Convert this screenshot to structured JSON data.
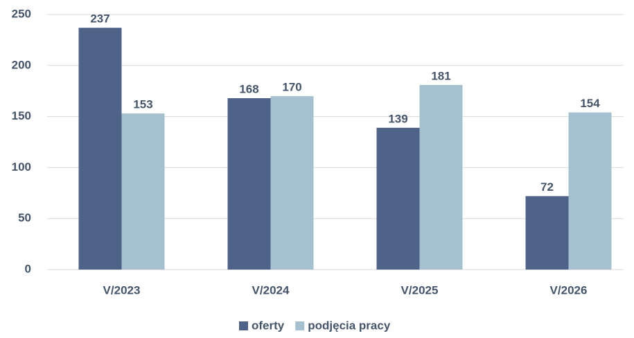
{
  "chart_data": {
    "type": "bar",
    "categories": [
      "V/2023",
      "V/2024",
      "V/2025",
      "V/2026"
    ],
    "series": [
      {
        "name": "oferty",
        "color": "#4f6288",
        "values": [
          237,
          168,
          139,
          72
        ]
      },
      {
        "name": "podjęcia pracy",
        "color": "#a5c1d0",
        "values": [
          153,
          170,
          181,
          154
        ]
      }
    ],
    "ylim": [
      0,
      250
    ],
    "yticks": [
      0,
      50,
      100,
      150,
      200,
      250
    ],
    "grid": true,
    "legend": "bottom"
  }
}
